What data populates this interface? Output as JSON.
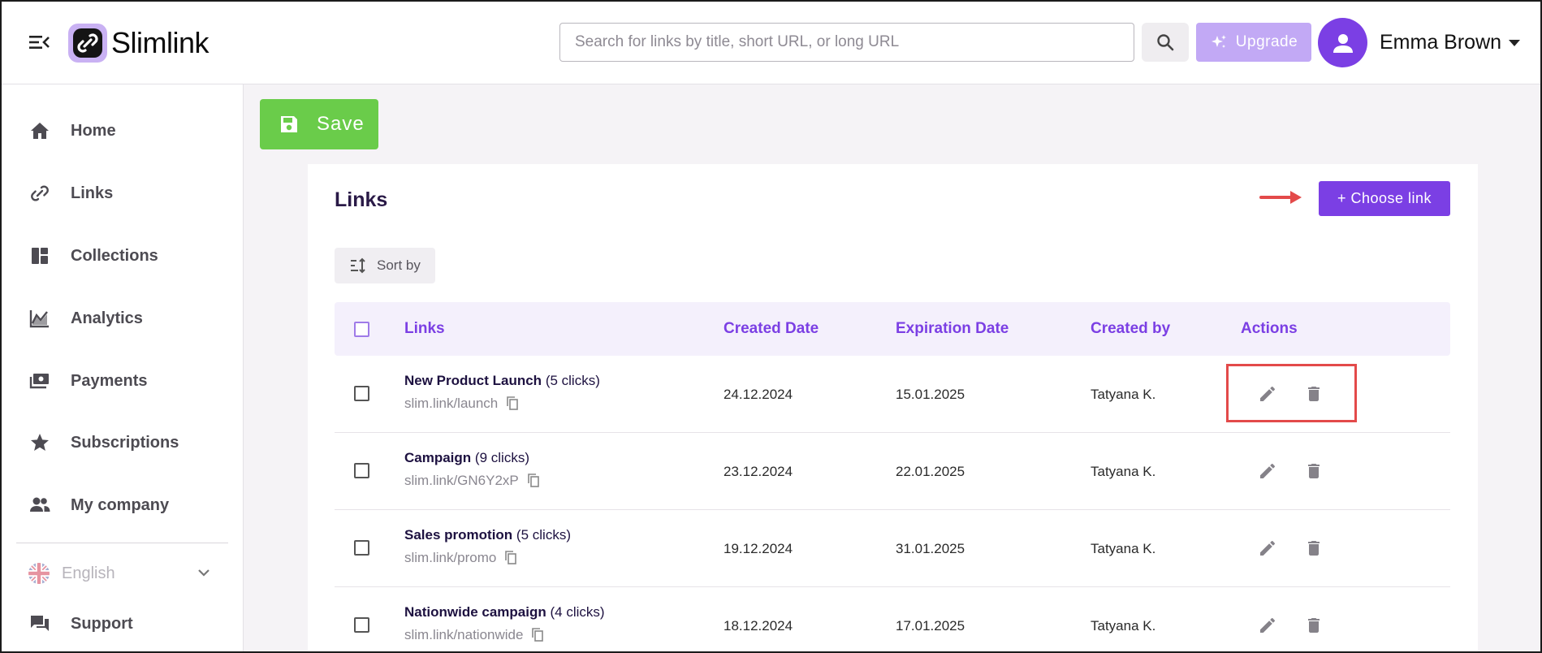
{
  "header": {
    "brand": "Slimlink",
    "search_placeholder": "Search for links by title, short URL, or long URL",
    "upgrade_label": "Upgrade",
    "user_name": "Emma Brown"
  },
  "sidebar": {
    "items": [
      {
        "label": "Home",
        "icon": "home-icon"
      },
      {
        "label": "Links",
        "icon": "link-icon"
      },
      {
        "label": "Collections",
        "icon": "collections-icon"
      },
      {
        "label": "Analytics",
        "icon": "analytics-icon"
      },
      {
        "label": "Payments",
        "icon": "payments-icon"
      },
      {
        "label": "Subscriptions",
        "icon": "star-icon"
      },
      {
        "label": "My company",
        "icon": "people-icon"
      }
    ],
    "language": "English",
    "support": "Support"
  },
  "toolbar": {
    "save_label": "Save"
  },
  "links_card": {
    "title": "Links",
    "choose_link_label": "+ Choose link",
    "sort_label": "Sort by",
    "columns": [
      "Links",
      "Created Date",
      "Expiration Date",
      "Created by",
      "Actions"
    ],
    "rows": [
      {
        "title": "New Product Launch",
        "clicks": "(5 clicks)",
        "url": "slim.link/launch",
        "created": "24.12.2024",
        "expires": "15.01.2025",
        "author": "Tatyana K."
      },
      {
        "title": "Campaign",
        "clicks": "(9 clicks)",
        "url": "slim.link/GN6Y2xP",
        "created": "23.12.2024",
        "expires": "22.01.2025",
        "author": "Tatyana K."
      },
      {
        "title": "Sales promotion",
        "clicks": "(5 clicks)",
        "url": "slim.link/promo",
        "created": "19.12.2024",
        "expires": "31.01.2025",
        "author": "Tatyana K."
      },
      {
        "title": "Nationwide campaign",
        "clicks": "(4 clicks)",
        "url": "slim.link/nationwide",
        "created": "18.12.2024",
        "expires": "17.01.2025",
        "author": "Tatyana K."
      }
    ]
  },
  "colors": {
    "accent": "#7b3fe4",
    "save_green": "#6acc4a",
    "annotation_red": "#e34a4a"
  }
}
